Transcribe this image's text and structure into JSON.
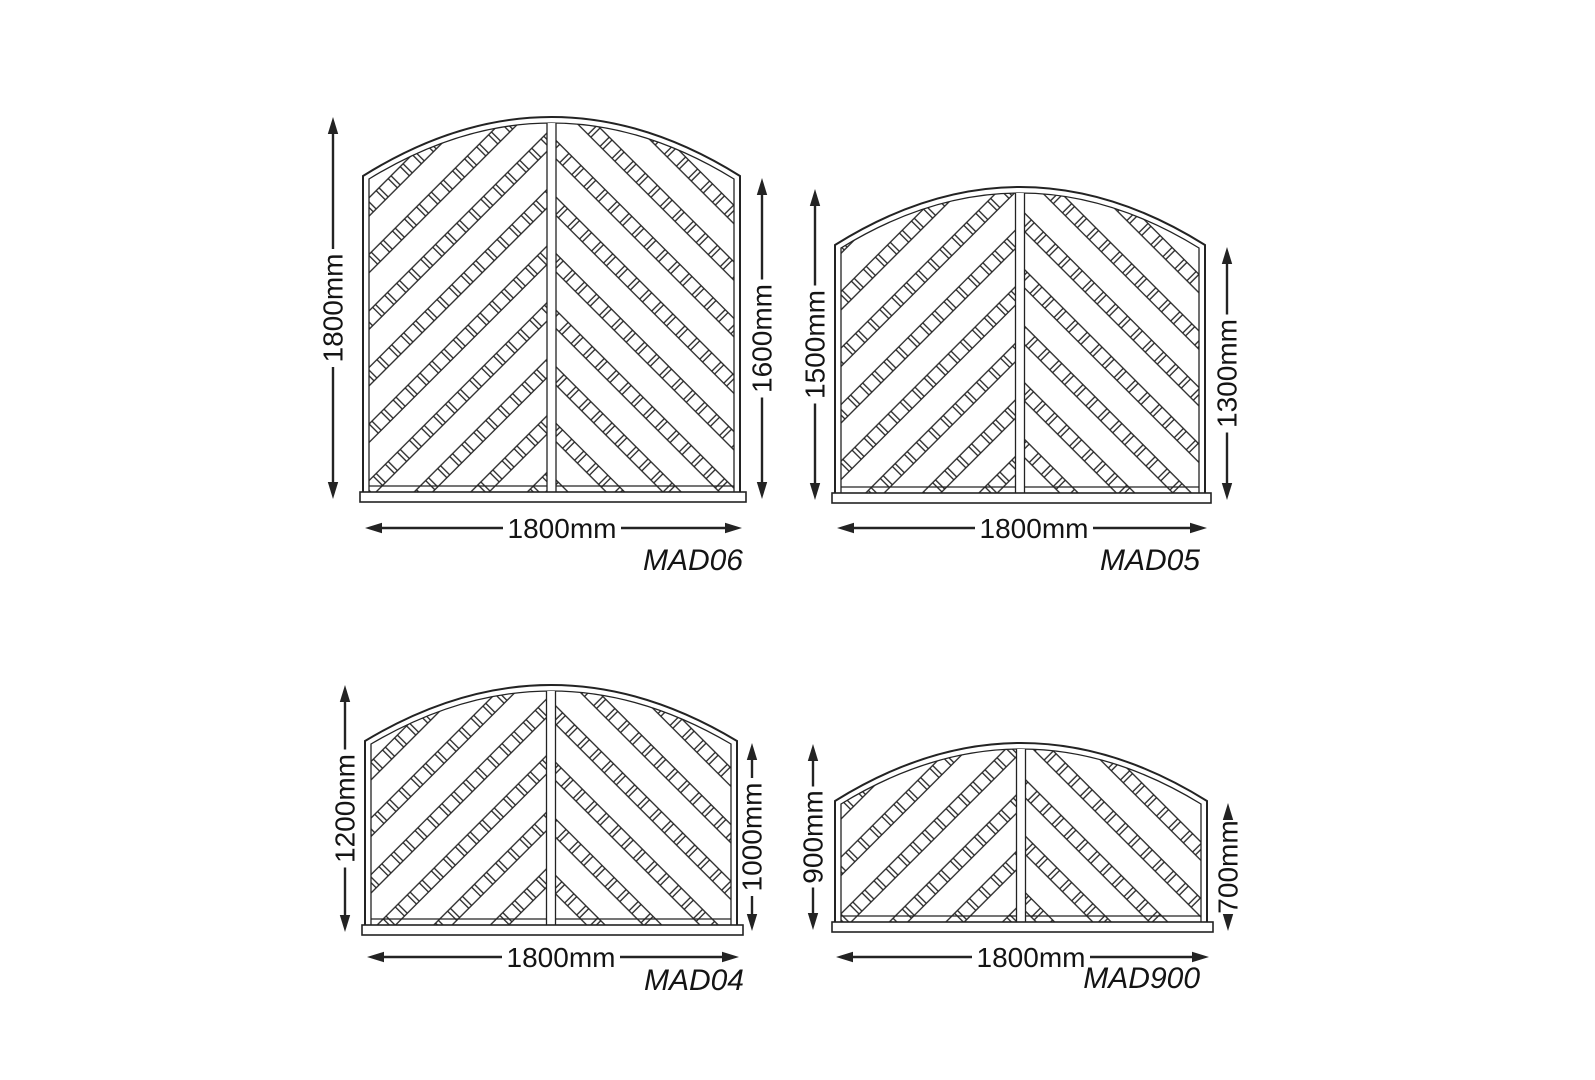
{
  "page": {
    "background": "#ffffff",
    "line_color": "#232323",
    "text_color": "#141414"
  },
  "diagram": {
    "type": "product-dimension-diagram",
    "description": "Four arched lattice trellis fence panels with dimension arrows",
    "panels": [
      {
        "model": "MAD06",
        "width_label": "1800mm",
        "left_height_label": "1800mm",
        "right_height_label": "1600mm",
        "width_mm": 1800,
        "left_height_mm": 1800,
        "right_height_mm": 1600
      },
      {
        "model": "MAD05",
        "width_label": "1800mm",
        "left_height_label": "1500mm",
        "right_height_label": "1300mm",
        "width_mm": 1800,
        "left_height_mm": 1500,
        "right_height_mm": 1300
      },
      {
        "model": "MAD04",
        "width_label": "1800mm",
        "left_height_label": "1200mm",
        "right_height_label": "1000mm",
        "width_mm": 1800,
        "left_height_mm": 1200,
        "right_height_mm": 1000
      },
      {
        "model": "MAD900",
        "width_label": "1800mm",
        "left_height_label": "900mm",
        "right_height_label": "700mm",
        "width_mm": 1800,
        "left_height_mm": 900,
        "right_height_mm": 700
      }
    ]
  }
}
